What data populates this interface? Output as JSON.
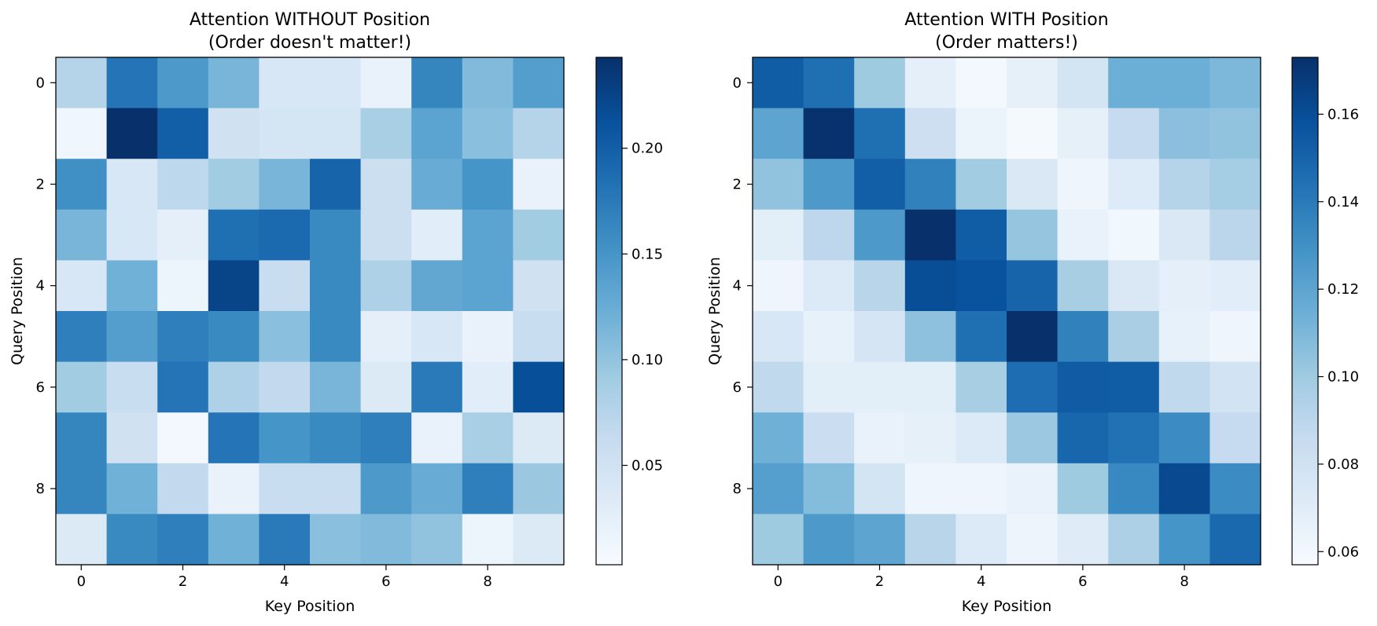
{
  "chart_data": [
    {
      "type": "heatmap",
      "title": "Attention WITHOUT Position",
      "subtitle": "(Order doesn't matter!)",
      "xlabel": "Key Position",
      "ylabel": "Query Position",
      "colormap": "Blues",
      "x_ticks": [
        "0",
        "2",
        "4",
        "6",
        "8"
      ],
      "y_ticks": [
        "0",
        "2",
        "4",
        "6",
        "8"
      ],
      "vmin": 0.003,
      "vmax": 0.243,
      "colorbar_ticks": [
        "0.05",
        "0.10",
        "0.15",
        "0.20"
      ],
      "colorbar_tick_values": [
        0.05,
        0.1,
        0.15,
        0.2
      ],
      "values": [
        [
          0.075,
          0.18,
          0.145,
          0.115,
          0.04,
          0.04,
          0.02,
          0.165,
          0.11,
          0.14
        ],
        [
          0.012,
          0.243,
          0.2,
          0.05,
          0.045,
          0.045,
          0.085,
          0.135,
          0.105,
          0.075
        ],
        [
          0.155,
          0.04,
          0.07,
          0.09,
          0.115,
          0.195,
          0.055,
          0.125,
          0.15,
          0.02
        ],
        [
          0.115,
          0.04,
          0.025,
          0.185,
          0.19,
          0.16,
          0.055,
          0.03,
          0.135,
          0.09
        ],
        [
          0.04,
          0.12,
          0.015,
          0.225,
          0.06,
          0.16,
          0.08,
          0.13,
          0.135,
          0.05
        ],
        [
          0.17,
          0.14,
          0.17,
          0.16,
          0.105,
          0.16,
          0.025,
          0.04,
          0.02,
          0.06
        ],
        [
          0.09,
          0.06,
          0.18,
          0.08,
          0.065,
          0.115,
          0.035,
          0.175,
          0.03,
          0.215
        ],
        [
          0.165,
          0.05,
          0.008,
          0.18,
          0.15,
          0.16,
          0.17,
          0.02,
          0.085,
          0.035
        ],
        [
          0.165,
          0.12,
          0.065,
          0.02,
          0.06,
          0.06,
          0.145,
          0.125,
          0.17,
          0.095
        ],
        [
          0.035,
          0.16,
          0.17,
          0.12,
          0.175,
          0.105,
          0.11,
          0.1,
          0.015,
          0.035
        ]
      ]
    },
    {
      "type": "heatmap",
      "title": "Attention WITH Position",
      "subtitle": "(Order matters!)",
      "xlabel": "Key Position",
      "ylabel": "Query Position",
      "colormap": "Blues",
      "x_ticks": [
        "0",
        "2",
        "4",
        "6",
        "8"
      ],
      "y_ticks": [
        "0",
        "2",
        "4",
        "6",
        "8"
      ],
      "vmin": 0.057,
      "vmax": 0.173,
      "colorbar_ticks": [
        "0.06",
        "0.08",
        "0.10",
        "0.12",
        "0.14",
        "0.16"
      ],
      "colorbar_tick_values": [
        0.06,
        0.08,
        0.1,
        0.12,
        0.14,
        0.16
      ],
      "values": [
        [
          0.153,
          0.145,
          0.1,
          0.068,
          0.06,
          0.067,
          0.078,
          0.115,
          0.115,
          0.11
        ],
        [
          0.12,
          0.172,
          0.145,
          0.082,
          0.064,
          0.059,
          0.067,
          0.086,
          0.106,
          0.104
        ],
        [
          0.104,
          0.126,
          0.152,
          0.137,
          0.099,
          0.074,
          0.062,
          0.072,
          0.092,
          0.098
        ],
        [
          0.069,
          0.089,
          0.126,
          0.173,
          0.153,
          0.103,
          0.065,
          0.061,
          0.074,
          0.09
        ],
        [
          0.062,
          0.073,
          0.091,
          0.16,
          0.158,
          0.15,
          0.097,
          0.074,
          0.068,
          0.07
        ],
        [
          0.075,
          0.066,
          0.077,
          0.105,
          0.145,
          0.173,
          0.137,
          0.096,
          0.066,
          0.062
        ],
        [
          0.088,
          0.069,
          0.069,
          0.069,
          0.097,
          0.146,
          0.154,
          0.153,
          0.088,
          0.079
        ],
        [
          0.114,
          0.083,
          0.065,
          0.067,
          0.073,
          0.101,
          0.149,
          0.144,
          0.132,
          0.086
        ],
        [
          0.123,
          0.108,
          0.078,
          0.062,
          0.062,
          0.065,
          0.1,
          0.134,
          0.162,
          0.132
        ],
        [
          0.1,
          0.126,
          0.12,
          0.091,
          0.073,
          0.063,
          0.071,
          0.095,
          0.128,
          0.148
        ]
      ]
    }
  ]
}
